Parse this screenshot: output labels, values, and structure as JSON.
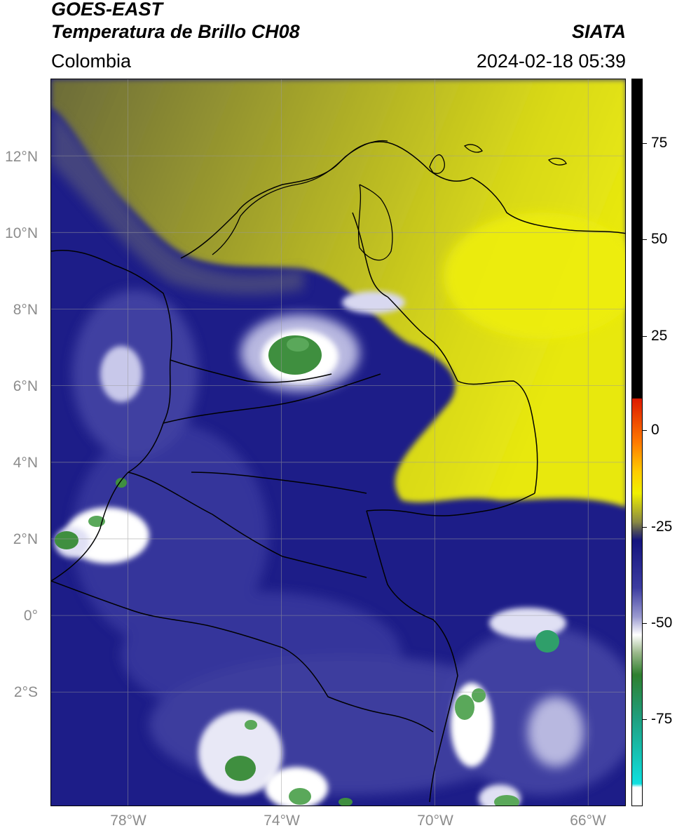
{
  "header": {
    "line1": "GOES-EAST",
    "line2": "Temperatura de Brillo CH08",
    "region": "Colombia",
    "brand": "SIATA",
    "datetime": "2024-02-18 05:39"
  },
  "map": {
    "lat_labels": [
      "12°N",
      "10°N",
      "8°N",
      "6°N",
      "4°N",
      "2°N",
      "0°",
      "2°S"
    ],
    "lon_labels": [
      "78°W",
      "74°W",
      "70°W",
      "66°W"
    ],
    "lat_values": [
      12,
      10,
      8,
      6,
      4,
      2,
      0,
      -2
    ],
    "lon_values": [
      -78,
      -74,
      -70,
      -66
    ],
    "extent": {
      "lon_min": -80,
      "lon_max": -65,
      "lat_min": -5,
      "lat_max": 14
    },
    "colors": {
      "deep_blue": "#14147e",
      "mid_blue": "#3c3ca0",
      "light_blue": "#9a9ad0",
      "white": "#ffffff",
      "green": "#3f8f3f",
      "olive": "#8c8c2a",
      "yellow": "#e6e614",
      "grey": "#5a5a5a"
    }
  },
  "colorbar": {
    "ticks": [
      "75",
      "50",
      "25",
      "0",
      "-25",
      "-50",
      "-75"
    ],
    "tick_values": [
      75,
      50,
      25,
      0,
      -25,
      -50,
      -75
    ],
    "range": [
      -95,
      90
    ]
  }
}
